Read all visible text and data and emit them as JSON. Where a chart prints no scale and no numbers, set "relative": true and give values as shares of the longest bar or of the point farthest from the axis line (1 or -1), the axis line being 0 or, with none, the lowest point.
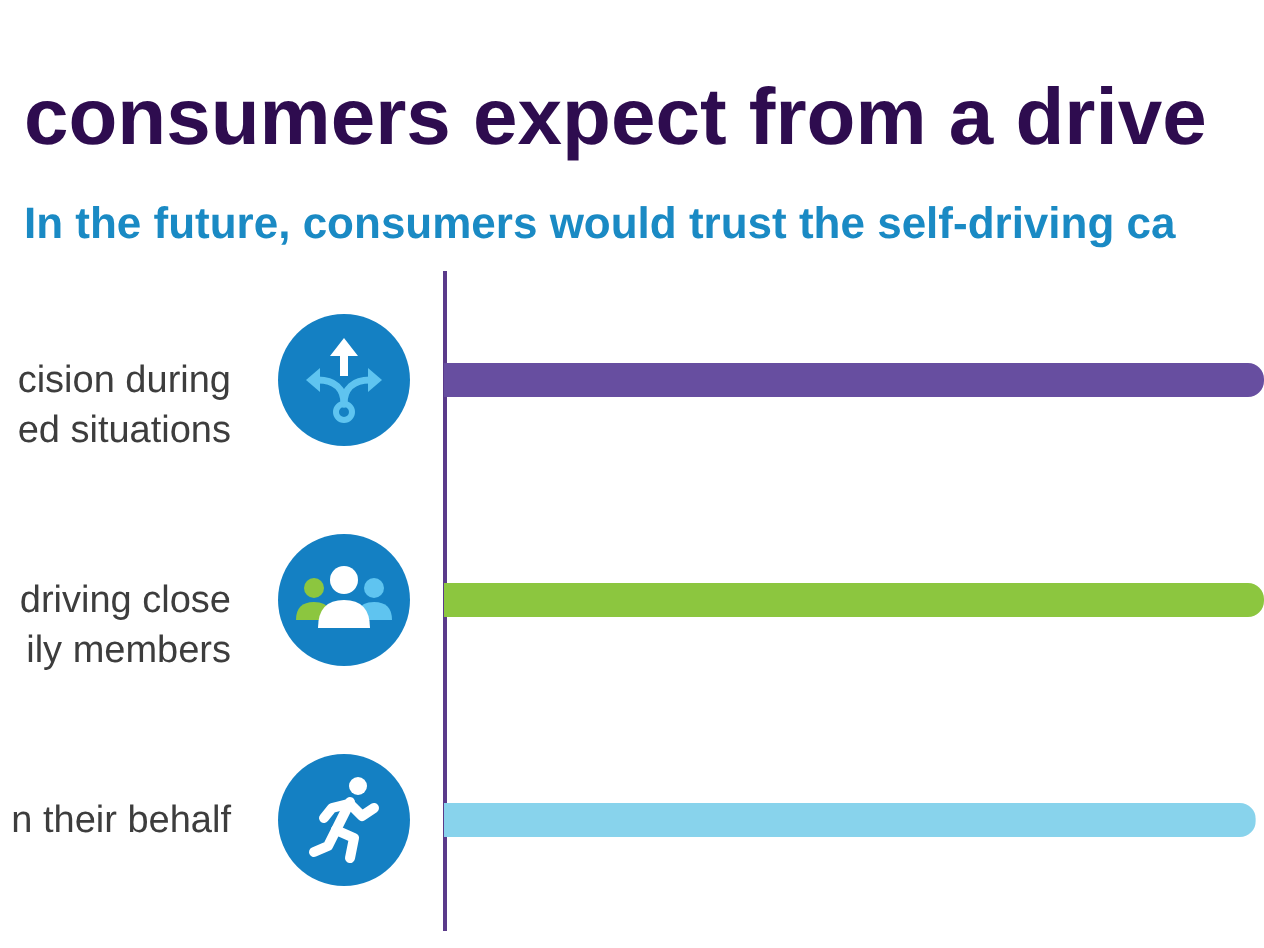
{
  "chart_data": {
    "type": "bar",
    "orientation": "horizontal",
    "relative": true,
    "title": "consumers expect from a drive",
    "subtitle": "In the future, consumers would trust the self-driving ca",
    "categories": [
      "cision during\ned situations",
      "driving close\nily members",
      "n their behalf"
    ],
    "values": [
      1,
      1,
      0.99
    ],
    "colors": [
      "#674ea0",
      "#8cc63f",
      "#88d3ec"
    ]
  }
}
